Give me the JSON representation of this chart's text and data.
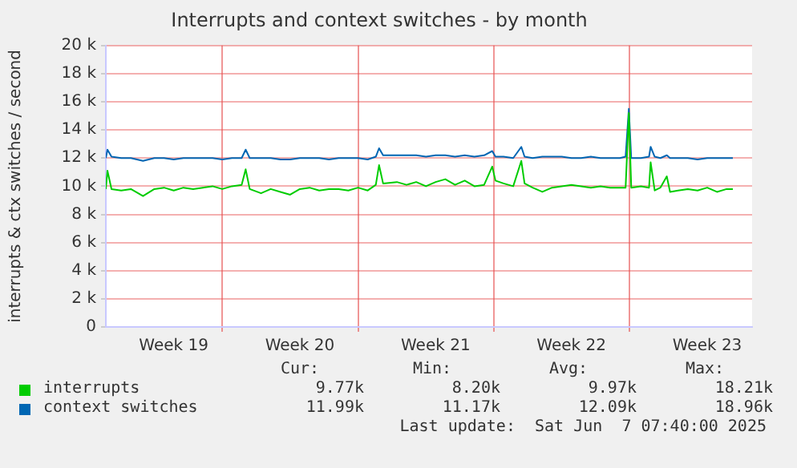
{
  "chart_data": {
    "type": "line",
    "title": "Interrupts and context switches - by month",
    "ylabel": "interrupts & ctx switches / second",
    "x": [
      "2025-05-06T00:00",
      "2025-05-06T02:00",
      "2025-05-06T07:00",
      "2025-05-06T19:00",
      "2025-05-07T07:00",
      "2025-05-07T22:00",
      "2025-05-08T12:00",
      "2025-05-09T00:00",
      "2025-05-09T12:00",
      "2025-05-10T00:00",
      "2025-05-10T12:00",
      "2025-05-11T00:00",
      "2025-05-11T12:00",
      "2025-05-12T00:00",
      "2025-05-12T12:00",
      "2025-05-13T00:00",
      "2025-05-13T05:00",
      "2025-05-13T10:00",
      "2025-05-14T00:00",
      "2025-05-14T12:00",
      "2025-05-15T00:00",
      "2025-05-15T12:00",
      "2025-05-16T00:00",
      "2025-05-16T12:00",
      "2025-05-17T00:00",
      "2025-05-17T12:00",
      "2025-05-18T00:00",
      "2025-05-18T12:00",
      "2025-05-19T00:00",
      "2025-05-19T12:00",
      "2025-05-19T22:00",
      "2025-05-20T02:00",
      "2025-05-20T07:00",
      "2025-05-21T00:00",
      "2025-05-21T12:00",
      "2025-05-22T00:00",
      "2025-05-22T12:00",
      "2025-05-23T00:00",
      "2025-05-23T12:00",
      "2025-05-24T00:00",
      "2025-05-24T12:00",
      "2025-05-25T00:00",
      "2025-05-25T12:00",
      "2025-05-25T22:00",
      "2025-05-26T02:00",
      "2025-05-26T12:00",
      "2025-05-27T00:00",
      "2025-05-27T10:00",
      "2025-05-27T14:00",
      "2025-05-28T00:00",
      "2025-05-28T12:00",
      "2025-05-29T00:00",
      "2025-05-29T12:00",
      "2025-05-30T00:00",
      "2025-05-30T12:00",
      "2025-05-31T00:00",
      "2025-05-31T12:00",
      "2025-06-01T00:00",
      "2025-06-01T12:00",
      "2025-06-01T19:00",
      "2025-06-01T23:00",
      "2025-06-02T02:00",
      "2025-06-02T14:00",
      "2025-06-03T00:00",
      "2025-06-03T02:00",
      "2025-06-03T07:00",
      "2025-06-03T14:00",
      "2025-06-03T22:00",
      "2025-06-04T02:00",
      "2025-06-04T12:00",
      "2025-06-05T00:00",
      "2025-06-05T12:00",
      "2025-06-06T00:00",
      "2025-06-06T12:00",
      "2025-06-07T00:00",
      "2025-06-07T07:40"
    ],
    "series": [
      {
        "name": "interrupts",
        "color": "#00cc00",
        "values": [
          9800,
          11100,
          9800,
          9700,
          9800,
          9300,
          9800,
          9900,
          9700,
          9900,
          9800,
          9900,
          10000,
          9800,
          10000,
          10100,
          11200,
          9800,
          9500,
          9800,
          9600,
          9400,
          9800,
          9900,
          9700,
          9800,
          9800,
          9700,
          9900,
          9700,
          10100,
          11500,
          10200,
          10300,
          10100,
          10300,
          10000,
          10300,
          10500,
          10100,
          10400,
          10000,
          10100,
          11400,
          10400,
          10200,
          10000,
          11800,
          10200,
          9900,
          9600,
          9900,
          10000,
          10100,
          10000,
          9900,
          10000,
          9900,
          9900,
          9900,
          15200,
          9900,
          10000,
          9900,
          11700,
          9700,
          9900,
          10700,
          9600,
          9700,
          9800,
          9700,
          9900,
          9600,
          9800,
          9800
        ]
      },
      {
        "name": "context switches",
        "color": "#0066b3",
        "values": [
          12000,
          12600,
          12100,
          12000,
          12000,
          11800,
          12000,
          12000,
          11900,
          12000,
          12000,
          12000,
          12000,
          11900,
          12000,
          12000,
          12600,
          12000,
          12000,
          12000,
          11900,
          11900,
          12000,
          12000,
          12000,
          11900,
          12000,
          12000,
          12000,
          11900,
          12100,
          12700,
          12200,
          12200,
          12200,
          12200,
          12100,
          12200,
          12200,
          12100,
          12200,
          12100,
          12200,
          12500,
          12100,
          12100,
          12000,
          12800,
          12100,
          12000,
          12100,
          12100,
          12100,
          12000,
          12000,
          12100,
          12000,
          12000,
          12000,
          12100,
          15500,
          12000,
          12000,
          12100,
          12800,
          12100,
          12000,
          12200,
          12000,
          12000,
          12000,
          11900,
          12000,
          12000,
          12000,
          12000
        ]
      }
    ],
    "xlim": [
      "2025-05-06T00:00",
      "2025-06-08T07:30"
    ],
    "xticks": [
      {
        "value": "2025-05-09T12:00",
        "label": "Week 19"
      },
      {
        "value": "2025-05-12T00:00",
        "label": null
      },
      {
        "value": "2025-05-16T00:00",
        "label": "Week 20"
      },
      {
        "value": "2025-05-19T00:00",
        "label": null
      },
      {
        "value": "2025-05-23T00:00",
        "label": "Week 21"
      },
      {
        "value": "2025-05-26T00:00",
        "label": null
      },
      {
        "value": "2025-05-30T00:00",
        "label": "Week 22"
      },
      {
        "value": "2025-06-02T00:00",
        "label": null
      },
      {
        "value": "2025-06-06T00:00",
        "label": "Week 23"
      }
    ],
    "ylim": [
      0,
      20000
    ],
    "yticks": [
      0,
      {
        "value": 2000,
        "label": "2 k"
      },
      {
        "value": 4000,
        "label": "4 k"
      },
      {
        "value": 6000,
        "label": "6 k"
      },
      {
        "value": 8000,
        "label": "8 k"
      },
      {
        "value": 10000,
        "label": "10 k"
      },
      {
        "value": 12000,
        "label": "12 k"
      },
      {
        "value": 14000,
        "label": "14 k"
      },
      {
        "value": 16000,
        "label": "16 k"
      },
      {
        "value": 18000,
        "label": "18 k"
      },
      {
        "value": 20000,
        "label": "20 k"
      }
    ],
    "grid": true,
    "legend": "bottom",
    "marker": "none",
    "line_style": "solid",
    "annotations": [
      "Cur:",
      "Min:",
      "Avg:",
      "Max:",
      "9.77k",
      "8.20k",
      "9.97k",
      "18.21k",
      "11.99k",
      "11.17k",
      "12.09k",
      "18.96k",
      "Last update:  Sat Jun  7 07:40:00 2025"
    ]
  }
}
